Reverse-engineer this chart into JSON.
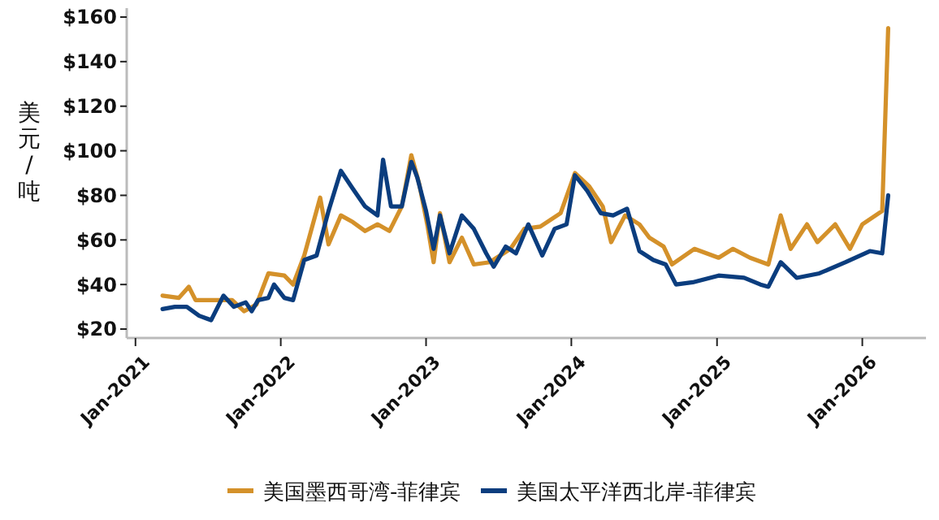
{
  "chart_data": {
    "type": "line",
    "ylabel": "美元/吨",
    "xlim": [
      "2020-12-10",
      "2026-06-10"
    ],
    "ylim": [
      16,
      164
    ],
    "xticks": [
      {
        "value": "2021-01",
        "label": "Jan-2021"
      },
      {
        "value": "2022-01",
        "label": "Jan-2022"
      },
      {
        "value": "2023-01",
        "label": "Jan-2023"
      },
      {
        "value": "2024-01",
        "label": "Jan-2024"
      },
      {
        "value": "2025-01",
        "label": "Jan-2025"
      },
      {
        "value": "2026-01",
        "label": "Jan-2026"
      }
    ],
    "yticks": [
      {
        "value": 20,
        "label": "$20"
      },
      {
        "value": 40,
        "label": "$40"
      },
      {
        "value": 60,
        "label": "$60"
      },
      {
        "value": 80,
        "label": "$80"
      },
      {
        "value": 100,
        "label": "$100"
      },
      {
        "value": 120,
        "label": "$120"
      },
      {
        "value": 140,
        "label": "$140"
      },
      {
        "value": 160,
        "label": "$160"
      }
    ],
    "grid": false,
    "legend": "bottom",
    "line_style": "solid",
    "marker": "none",
    "series": [
      {
        "name": "美国墨西哥湾-菲律宾",
        "color": "#d4912a",
        "x": [
          "2021-03-10",
          "2021-04-20",
          "2021-05-15",
          "2021-06-01",
          "2021-07-15",
          "2021-09-01",
          "2021-10-01",
          "2021-11-01",
          "2021-12-01",
          "2022-01-10",
          "2022-02-01",
          "2022-03-01",
          "2022-04-10",
          "2022-05-01",
          "2022-06-01",
          "2022-07-01",
          "2022-08-01",
          "2022-09-01",
          "2022-10-01",
          "2022-11-01",
          "2022-11-25",
          "2022-12-15",
          "2023-01-05",
          "2023-01-20",
          "2023-02-05",
          "2023-03-01",
          "2023-04-01",
          "2023-05-01",
          "2023-06-10",
          "2023-08-01",
          "2023-09-05",
          "2023-10-15",
          "2023-12-05",
          "2024-01-10",
          "2024-02-15",
          "2024-03-20",
          "2024-04-10",
          "2024-05-15",
          "2024-06-20",
          "2024-07-15",
          "2024-08-20",
          "2024-09-10",
          "2024-11-05",
          "2025-01-05",
          "2025-02-10",
          "2025-03-25",
          "2025-05-10",
          "2025-06-10",
          "2025-07-05",
          "2025-08-15",
          "2025-09-10",
          "2025-10-25",
          "2025-12-01",
          "2026-01-01",
          "2026-02-20",
          "2026-03-07"
        ],
        "values": [
          35,
          34,
          39,
          33,
          33,
          33,
          28,
          31,
          45,
          44,
          40,
          53,
          79,
          58,
          71,
          68,
          64,
          67,
          64,
          75,
          98,
          85,
          66,
          50,
          72,
          50,
          61,
          49,
          50,
          56,
          65,
          66,
          72,
          90,
          84,
          75,
          59,
          71,
          67,
          61,
          57,
          49,
          56,
          52,
          56,
          52,
          49,
          71,
          56,
          67,
          59,
          67,
          56,
          67,
          73,
          155
        ]
      },
      {
        "name": "美国太平洋西北岸-菲律宾",
        "color": "#0b3d7e",
        "x": [
          "2021-03-10",
          "2021-04-10",
          "2021-05-10",
          "2021-06-10",
          "2021-07-10",
          "2021-08-10",
          "2021-09-05",
          "2021-10-05",
          "2021-10-20",
          "2021-11-05",
          "2021-12-01",
          "2021-12-15",
          "2022-01-10",
          "2022-02-01",
          "2022-03-01",
          "2022-04-01",
          "2022-05-01",
          "2022-06-01",
          "2022-07-01",
          "2022-08-01",
          "2022-09-01",
          "2022-09-15",
          "2022-10-05",
          "2022-11-01",
          "2022-11-25",
          "2022-12-10",
          "2023-01-01",
          "2023-01-20",
          "2023-02-05",
          "2023-03-01",
          "2023-04-01",
          "2023-05-01",
          "2023-06-01",
          "2023-06-20",
          "2023-07-20",
          "2023-08-15",
          "2023-09-15",
          "2023-10-20",
          "2023-11-20",
          "2023-12-20",
          "2024-01-10",
          "2024-02-10",
          "2024-03-15",
          "2024-04-15",
          "2024-05-20",
          "2024-06-20",
          "2024-07-25",
          "2024-08-25",
          "2024-09-20",
          "2024-11-01",
          "2025-01-05",
          "2025-03-10",
          "2025-04-20",
          "2025-05-10",
          "2025-06-10",
          "2025-07-20",
          "2025-09-15",
          "2025-11-20",
          "2026-01-20",
          "2026-02-20",
          "2026-03-07"
        ],
        "values": [
          29,
          30,
          30,
          26,
          24,
          35,
          30,
          32,
          28,
          33,
          34,
          40,
          34,
          33,
          51,
          53,
          73,
          91,
          83,
          75,
          71,
          96,
          75,
          75,
          95,
          88,
          73,
          56,
          71,
          54,
          71,
          65,
          54,
          48,
          57,
          54,
          67,
          53,
          65,
          67,
          89,
          82,
          72,
          71,
          74,
          55,
          51,
          49,
          40,
          41,
          44,
          43,
          40,
          39,
          50,
          43,
          45,
          50,
          55,
          54,
          80
        ]
      }
    ]
  }
}
